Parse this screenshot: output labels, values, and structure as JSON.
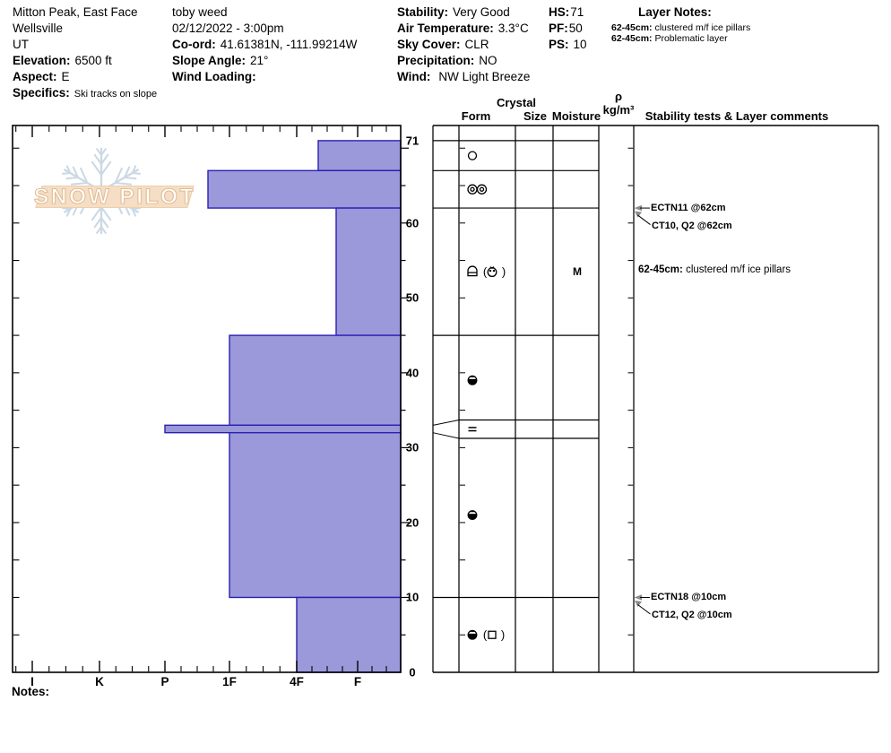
{
  "header": {
    "col1": {
      "pit_name": "Mitton Peak, East Face",
      "region": "Wellsville",
      "state": "UT",
      "elevation_label": "Elevation:",
      "elevation": "6500 ft",
      "aspect_label": "Aspect:",
      "aspect": "E",
      "specifics_label": "Specifics:",
      "specifics": "Ski tracks on slope"
    },
    "col2": {
      "observer": "toby weed",
      "datetime": "02/12/2022 - 3:00pm",
      "coord_label": "Co-ord:",
      "coord": "41.61381N, -111.99214W",
      "slope_angle_label": "Slope Angle:",
      "slope_angle": "21°",
      "wind_loading_label": "Wind Loading:",
      "wind_loading": ""
    },
    "col3": {
      "stability_label": "Stability:",
      "stability": "Very Good",
      "air_temp_label": "Air Temperature:",
      "air_temp": "3.3°C",
      "sky_label": "Sky Cover:",
      "sky": "CLR",
      "precip_label": "Precipitation:",
      "precip": "NO",
      "wind_label": "Wind:",
      "wind": "NW Light Breeze"
    },
    "col4": {
      "hs_label": "HS:",
      "hs": "71",
      "pf_label": "PF:",
      "pf": "50",
      "ps_label": "PS:",
      "ps": "10"
    },
    "layer_notes": {
      "title": "Layer Notes:",
      "notes": [
        {
          "range": "62-45cm:",
          "text": " clustered m/f ice pillars"
        },
        {
          "range": "62-45cm:",
          "text": " Problematic layer"
        }
      ]
    }
  },
  "watermark": {
    "text": "SNOW PILOT"
  },
  "columns": {
    "crystal": "Crystal",
    "form": "Form",
    "size": "Size",
    "moisture": "Moisture",
    "rho": "ρ",
    "rho_units": "kg/m³",
    "stability": "Stability tests & Layer comments"
  },
  "notes_label": "Notes:",
  "chart_data": {
    "type": "snow-profile-bar",
    "title": "Snow hardness profile, depth (cm) vs hand hardness",
    "hs_cm": 71,
    "depth_ticks": [
      0,
      10,
      20,
      30,
      40,
      50,
      60,
      71
    ],
    "depth_minor_step_cm": 5,
    "hardness_labels": [
      "I",
      "K",
      "P",
      "1F",
      "4F",
      "F"
    ],
    "layers": [
      {
        "top_cm": 71,
        "bottom_cm": 67,
        "hardness": "4F-",
        "forms": [
          "circle"
        ],
        "moisture": ""
      },
      {
        "top_cm": 67,
        "bottom_cm": 62,
        "hardness": "1F+",
        "forms": [
          "ring",
          "ring"
        ],
        "moisture": ""
      },
      {
        "top_cm": 62,
        "bottom_cm": 45,
        "hardness": "F+",
        "forms": [
          "crust",
          "paren-open",
          "cluster",
          "paren-close"
        ],
        "moisture": "M",
        "comment_range": "62-45cm:",
        "comment_text": " clustered m/f ice pillars"
      },
      {
        "top_cm": 45,
        "bottom_cm": 33,
        "hardness": "1F",
        "forms": [
          "melt-round"
        ],
        "moisture": ""
      },
      {
        "top_cm": 33,
        "bottom_cm": 32,
        "hardness": "P",
        "forms": [
          "ice-lens"
        ],
        "moisture": "",
        "expanded": true
      },
      {
        "top_cm": 32,
        "bottom_cm": 10,
        "hardness": "1F",
        "forms": [
          "melt-round"
        ],
        "moisture": ""
      },
      {
        "top_cm": 10,
        "bottom_cm": 0,
        "hardness": "4F",
        "forms": [
          "melt-round",
          "paren-open",
          "facet",
          "paren-close"
        ],
        "moisture": ""
      }
    ],
    "stability_tests": [
      {
        "depth_cm": 62,
        "line1": "ECTN11 @62cm",
        "line2": "CT10, Q2 @62cm"
      },
      {
        "depth_cm": 10,
        "line1": "ECTN18 @10cm",
        "line2": "CT12, Q2 @10cm"
      }
    ]
  },
  "colors": {
    "bar_fill": "#9b99d9",
    "bar_stroke": "#2a20b3",
    "line_black": "#000000",
    "arrow_gray": "#8a8a8a",
    "logo_band": "#f5dec5",
    "logo_band_border": "#eccfa9",
    "logo_text_fill": "#ffffff",
    "logo_text_outline": "#e2bd95",
    "snowflake": "#ccd9e4"
  }
}
